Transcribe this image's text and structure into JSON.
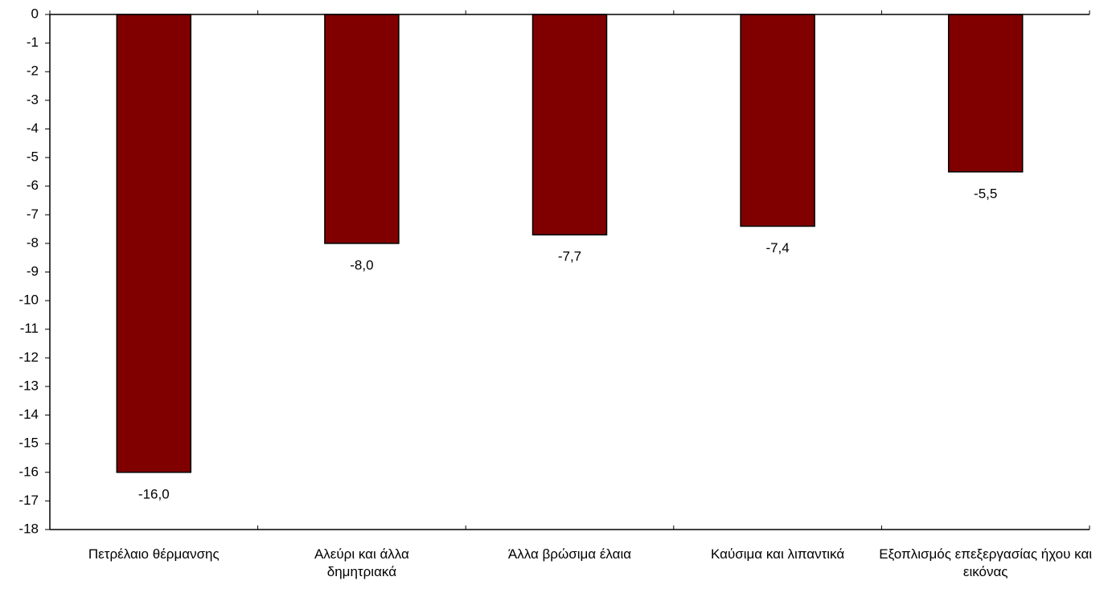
{
  "chart_data": {
    "type": "bar",
    "categories": [
      "Πετρέλαιο θέρμανσης",
      "Αλεύρι και άλλα δημητριακά",
      "Άλλα βρώσιμα έλαια",
      "Καύσιμα και λιπαντικά",
      "Εξοπλισμός επεξεργασίας ήχου και εικόνας"
    ],
    "values": [
      -16.0,
      -8.0,
      -7.7,
      -7.4,
      -5.5
    ],
    "value_labels": [
      "-16,0",
      "-8,0",
      "-7,7",
      "-7,4",
      "-5,5"
    ],
    "color": "#800000",
    "ylim": [
      -18,
      0
    ],
    "yticks": [
      0,
      -1,
      -2,
      -3,
      -4,
      -5,
      -6,
      -7,
      -8,
      -9,
      -10,
      -11,
      -12,
      -13,
      -14,
      -15,
      -16,
      -17,
      -18
    ],
    "grid": false
  }
}
